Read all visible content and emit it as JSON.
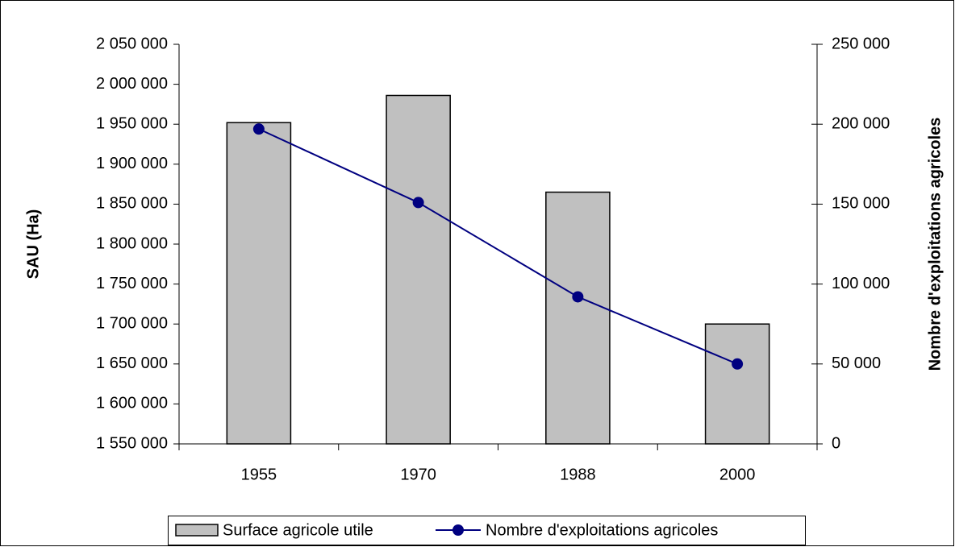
{
  "chart_data": {
    "type": "bar_line",
    "y_label": "SAU (Ha)",
    "y2_label": "Nombre d'exploitations agricoles",
    "categories": [
      "1955",
      "1970",
      "1988",
      "2000"
    ],
    "series": [
      {
        "name": "Surface agricole utile",
        "type": "bar",
        "color": "#c0c0c0",
        "values": [
          1952000,
          1986000,
          1865000,
          1700000
        ]
      },
      {
        "name": "Nombre d'exploitations agricoles",
        "type": "line",
        "axis": "y2",
        "color": "#000080",
        "values": [
          197000,
          151000,
          92000,
          50000
        ]
      }
    ],
    "ylim": [
      1550000,
      2050000
    ],
    "yticks": [
      {
        "value": 1550000,
        "label": "1 550 000"
      },
      {
        "value": 1600000,
        "label": "1 600 000"
      },
      {
        "value": 1650000,
        "label": "1 650 000"
      },
      {
        "value": 1700000,
        "label": "1 700 000"
      },
      {
        "value": 1750000,
        "label": "1 750 000"
      },
      {
        "value": 1800000,
        "label": "1 800 000"
      },
      {
        "value": 1850000,
        "label": "1 850 000"
      },
      {
        "value": 1900000,
        "label": "1 900 000"
      },
      {
        "value": 1950000,
        "label": "1 950 000"
      },
      {
        "value": 2000000,
        "label": "2 000 000"
      },
      {
        "value": 2050000,
        "label": "2 050 000"
      }
    ],
    "y2lim": [
      0,
      250000
    ],
    "y2ticks": [
      0,
      {
        "value": 50000,
        "label": "50 000"
      },
      {
        "value": 100000,
        "label": "100 000"
      },
      {
        "value": 150000,
        "label": "150 000"
      },
      {
        "value": 200000,
        "label": "200 000"
      },
      {
        "value": 250000,
        "label": "250 000"
      }
    ],
    "legend": "bottom"
  }
}
